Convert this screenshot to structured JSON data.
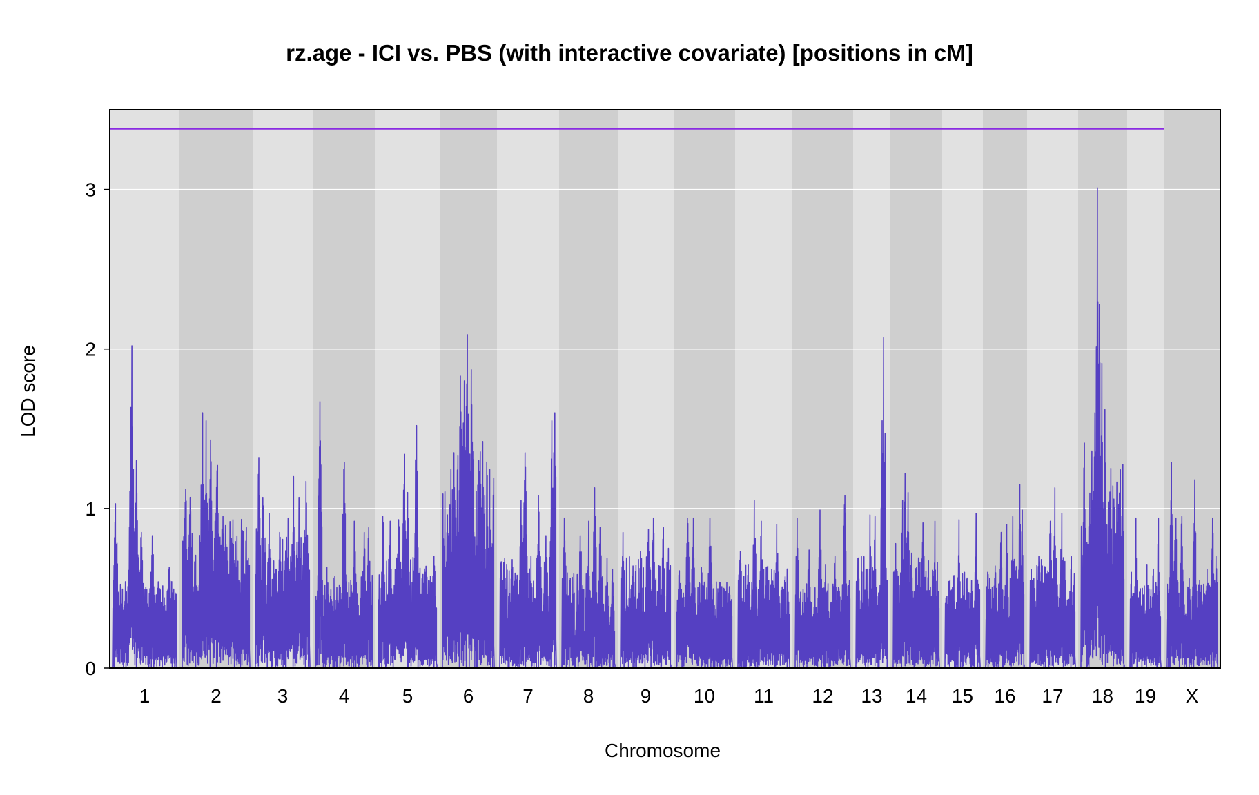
{
  "chart_data": {
    "type": "line",
    "title": "rz.age - ICI vs. PBS (with interactive covariate) [positions in cM]",
    "xlabel": "Chromosome",
    "ylabel": "LOD score",
    "ylim": [
      0,
      3.5
    ],
    "yticks": [
      0,
      1,
      2,
      3
    ],
    "grid": "horizontal",
    "background": "alternating grey bands per chromosome",
    "line_color": "#5540c2",
    "threshold": {
      "value": 3.38,
      "color": "#8a2be2"
    },
    "chromosomes": [
      {
        "label": "1",
        "base": [
          0.35,
          0.55
        ],
        "peaks": [
          [
            0.05,
            1.03
          ],
          [
            0.3,
            2.02
          ],
          [
            0.37,
            1.3
          ],
          [
            0.45,
            0.85
          ],
          [
            0.62,
            0.83
          ],
          [
            0.7,
            0.5
          ],
          [
            0.88,
            0.63
          ]
        ]
      },
      {
        "label": "2",
        "base": [
          0.45,
          0.95
        ],
        "peaks": [
          [
            0.05,
            1.12
          ],
          [
            0.12,
            1.07
          ],
          [
            0.3,
            1.6
          ],
          [
            0.35,
            1.55
          ],
          [
            0.42,
            1.43
          ],
          [
            0.52,
            1.27
          ],
          [
            0.6,
            0.95
          ],
          [
            0.75,
            0.93
          ],
          [
            0.9,
            0.5
          ]
        ]
      },
      {
        "label": "3",
        "base": [
          0.4,
          0.9
        ],
        "peaks": [
          [
            0.06,
            1.32
          ],
          [
            0.14,
            1.07
          ],
          [
            0.25,
            0.97
          ],
          [
            0.45,
            0.82
          ],
          [
            0.6,
            0.94
          ],
          [
            0.7,
            1.2
          ],
          [
            0.8,
            1.07
          ],
          [
            0.93,
            1.17
          ]
        ]
      },
      {
        "label": "4",
        "base": [
          0.3,
          0.6
        ],
        "peaks": [
          [
            0.08,
            1.67
          ],
          [
            0.2,
            0.63
          ],
          [
            0.5,
            1.29
          ],
          [
            0.62,
            0.55
          ],
          [
            0.68,
            0.92
          ],
          [
            0.85,
            0.85
          ],
          [
            0.93,
            0.88
          ]
        ]
      },
      {
        "label": "5",
        "base": [
          0.35,
          0.7
        ],
        "peaks": [
          [
            0.08,
            0.95
          ],
          [
            0.2,
            0.92
          ],
          [
            0.35,
            0.93
          ],
          [
            0.45,
            1.34
          ],
          [
            0.5,
            1.1
          ],
          [
            0.65,
            1.52
          ],
          [
            0.8,
            0.6
          ],
          [
            0.95,
            0.7
          ]
        ]
      },
      {
        "label": "6",
        "base": [
          0.6,
          1.4
        ],
        "peaks": [
          [
            0.1,
            0.96
          ],
          [
            0.22,
            1.35
          ],
          [
            0.35,
            1.83
          ],
          [
            0.42,
            1.8
          ],
          [
            0.48,
            2.09
          ],
          [
            0.56,
            1.87
          ],
          [
            0.7,
            1.3
          ],
          [
            0.78,
            1.42
          ],
          [
            0.88,
            0.73
          ]
        ]
      },
      {
        "label": "7",
        "base": [
          0.3,
          0.7
        ],
        "peaks": [
          [
            0.08,
            0.62
          ],
          [
            0.22,
            0.68
          ],
          [
            0.38,
            1.05
          ],
          [
            0.45,
            1.35
          ],
          [
            0.55,
            0.7
          ],
          [
            0.68,
            1.08
          ],
          [
            0.82,
            0.83
          ],
          [
            0.92,
            1.55
          ],
          [
            0.97,
            1.6
          ]
        ]
      },
      {
        "label": "8",
        "base": [
          0.2,
          0.6
        ],
        "peaks": [
          [
            0.05,
            0.94
          ],
          [
            0.15,
            0.55
          ],
          [
            0.35,
            0.83
          ],
          [
            0.5,
            0.92
          ],
          [
            0.62,
            1.13
          ],
          [
            0.72,
            0.88
          ],
          [
            0.85,
            0.69
          ],
          [
            0.95,
            0.62
          ]
        ]
      },
      {
        "label": "9",
        "base": [
          0.3,
          0.7
        ],
        "peaks": [
          [
            0.05,
            0.85
          ],
          [
            0.25,
            0.64
          ],
          [
            0.4,
            0.73
          ],
          [
            0.55,
            0.87
          ],
          [
            0.65,
            0.94
          ],
          [
            0.85,
            0.88
          ],
          [
            0.95,
            0.75
          ]
        ]
      },
      {
        "label": "10",
        "base": [
          0.3,
          0.55
        ],
        "peaks": [
          [
            0.05,
            0.61
          ],
          [
            0.2,
            0.94
          ],
          [
            0.3,
            0.94
          ],
          [
            0.45,
            0.63
          ],
          [
            0.6,
            0.94
          ],
          [
            0.85,
            0.5
          ],
          [
            0.95,
            0.51
          ]
        ]
      },
      {
        "label": "11",
        "base": [
          0.3,
          0.65
        ],
        "peaks": [
          [
            0.05,
            0.73
          ],
          [
            0.2,
            0.65
          ],
          [
            0.32,
            1.05
          ],
          [
            0.45,
            0.92
          ],
          [
            0.55,
            0.63
          ],
          [
            0.75,
            0.9
          ],
          [
            0.9,
            0.55
          ]
        ]
      },
      {
        "label": "12",
        "base": [
          0.3,
          0.55
        ],
        "peaks": [
          [
            0.04,
            0.94
          ],
          [
            0.25,
            0.74
          ],
          [
            0.45,
            0.99
          ],
          [
            0.55,
            0.65
          ],
          [
            0.72,
            0.7
          ],
          [
            0.9,
            1.08
          ]
        ]
      },
      {
        "label": "13",
        "base": [
          0.35,
          0.7
        ],
        "peaks": [
          [
            0.08,
            0.69
          ],
          [
            0.35,
            0.62
          ],
          [
            0.45,
            0.96
          ],
          [
            0.6,
            0.95
          ],
          [
            0.82,
            1.55
          ],
          [
            0.88,
            2.07
          ],
          [
            0.92,
            1.47
          ]
        ]
      },
      {
        "label": "14",
        "base": [
          0.35,
          0.7
        ],
        "peaks": [
          [
            0.05,
            0.78
          ],
          [
            0.2,
            1.05
          ],
          [
            0.26,
            1.22
          ],
          [
            0.32,
            1.1
          ],
          [
            0.4,
            0.72
          ],
          [
            0.65,
            0.91
          ],
          [
            0.9,
            0.92
          ]
        ]
      },
      {
        "label": "15",
        "base": [
          0.35,
          0.6
        ],
        "peaks": [
          [
            0.05,
            0.45
          ],
          [
            0.25,
            0.58
          ],
          [
            0.4,
            0.93
          ],
          [
            0.55,
            0.6
          ],
          [
            0.75,
            0.55
          ],
          [
            0.88,
            0.97
          ]
        ]
      },
      {
        "label": "16",
        "base": [
          0.3,
          0.7
        ],
        "peaks": [
          [
            0.05,
            0.6
          ],
          [
            0.25,
            0.64
          ],
          [
            0.4,
            0.85
          ],
          [
            0.55,
            0.9
          ],
          [
            0.7,
            0.95
          ],
          [
            0.88,
            1.15
          ],
          [
            0.95,
            0.99
          ]
        ]
      },
      {
        "label": "17",
        "base": [
          0.35,
          0.7
        ],
        "peaks": [
          [
            0.05,
            0.55
          ],
          [
            0.25,
            0.68
          ],
          [
            0.45,
            0.92
          ],
          [
            0.55,
            1.13
          ],
          [
            0.7,
            0.97
          ],
          [
            0.9,
            0.62
          ]
        ]
      },
      {
        "label": "18",
        "base": [
          0.55,
          1.3
        ],
        "peaks": [
          [
            0.08,
            1.41
          ],
          [
            0.25,
            1.36
          ],
          [
            0.32,
            1.6
          ],
          [
            0.38,
            3.01
          ],
          [
            0.42,
            2.28
          ],
          [
            0.48,
            1.91
          ],
          [
            0.55,
            1.62
          ],
          [
            0.65,
            1.05
          ],
          [
            0.8,
            0.84
          ],
          [
            0.95,
            0.72
          ]
        ]
      },
      {
        "label": "19",
        "base": [
          0.3,
          0.55
        ],
        "peaks": [
          [
            0.05,
            0.6
          ],
          [
            0.2,
            0.94
          ],
          [
            0.4,
            0.5
          ],
          [
            0.55,
            0.65
          ],
          [
            0.75,
            0.62
          ],
          [
            0.92,
            0.94
          ]
        ]
      },
      {
        "label": "X",
        "base": [
          0.3,
          0.55
        ],
        "peaks": [
          [
            0.1,
            1.29
          ],
          [
            0.18,
            0.94
          ],
          [
            0.3,
            0.95
          ],
          [
            0.45,
            0.56
          ],
          [
            0.55,
            1.18
          ],
          [
            0.65,
            0.55
          ],
          [
            0.8,
            0.62
          ],
          [
            0.9,
            0.94
          ],
          [
            0.97,
            0.7
          ]
        ]
      }
    ]
  }
}
